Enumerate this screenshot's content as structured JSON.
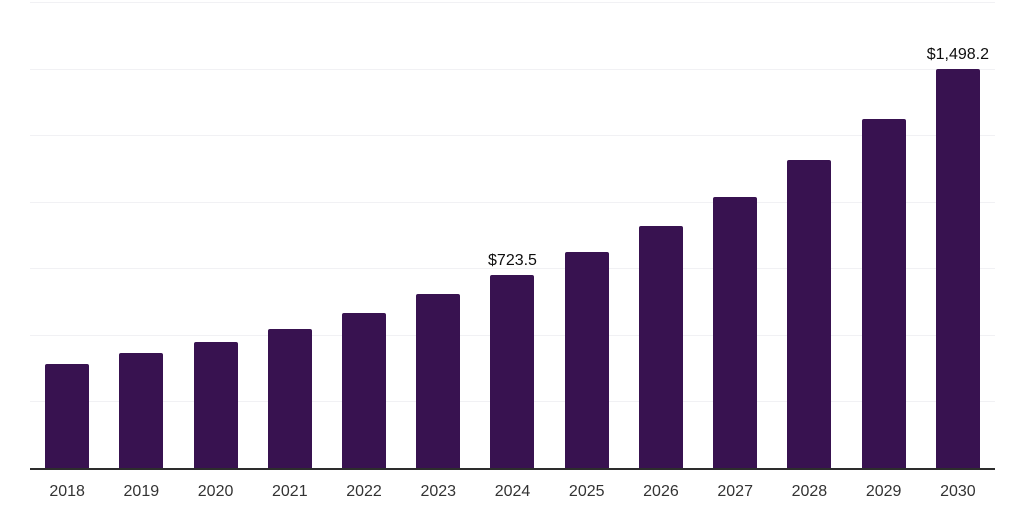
{
  "chart_data": {
    "type": "bar",
    "title": "",
    "xlabel": "",
    "ylabel": "",
    "categories": [
      "2018",
      "2019",
      "2020",
      "2021",
      "2022",
      "2023",
      "2024",
      "2025",
      "2026",
      "2027",
      "2028",
      "2029",
      "2030"
    ],
    "values": [
      390,
      431,
      473,
      521,
      584,
      652,
      723.5,
      810,
      907,
      1017,
      1156,
      1312,
      1498.2
    ],
    "data_labels": [
      "",
      "",
      "",
      "",
      "",
      "",
      "$723.5",
      "",
      "",
      "",
      "",
      "",
      "$1,498.2"
    ],
    "ylim": [
      0,
      1750
    ],
    "gridline_step": 250,
    "grid": "horizontal-only",
    "legend": "none",
    "colors": {
      "bar": "#381250",
      "axis_line": "#2d2d2d",
      "gridline": "#f1f1f4",
      "tick_label": "#333333",
      "data_label": "#0f0f0f",
      "background": "#ffffff"
    }
  }
}
